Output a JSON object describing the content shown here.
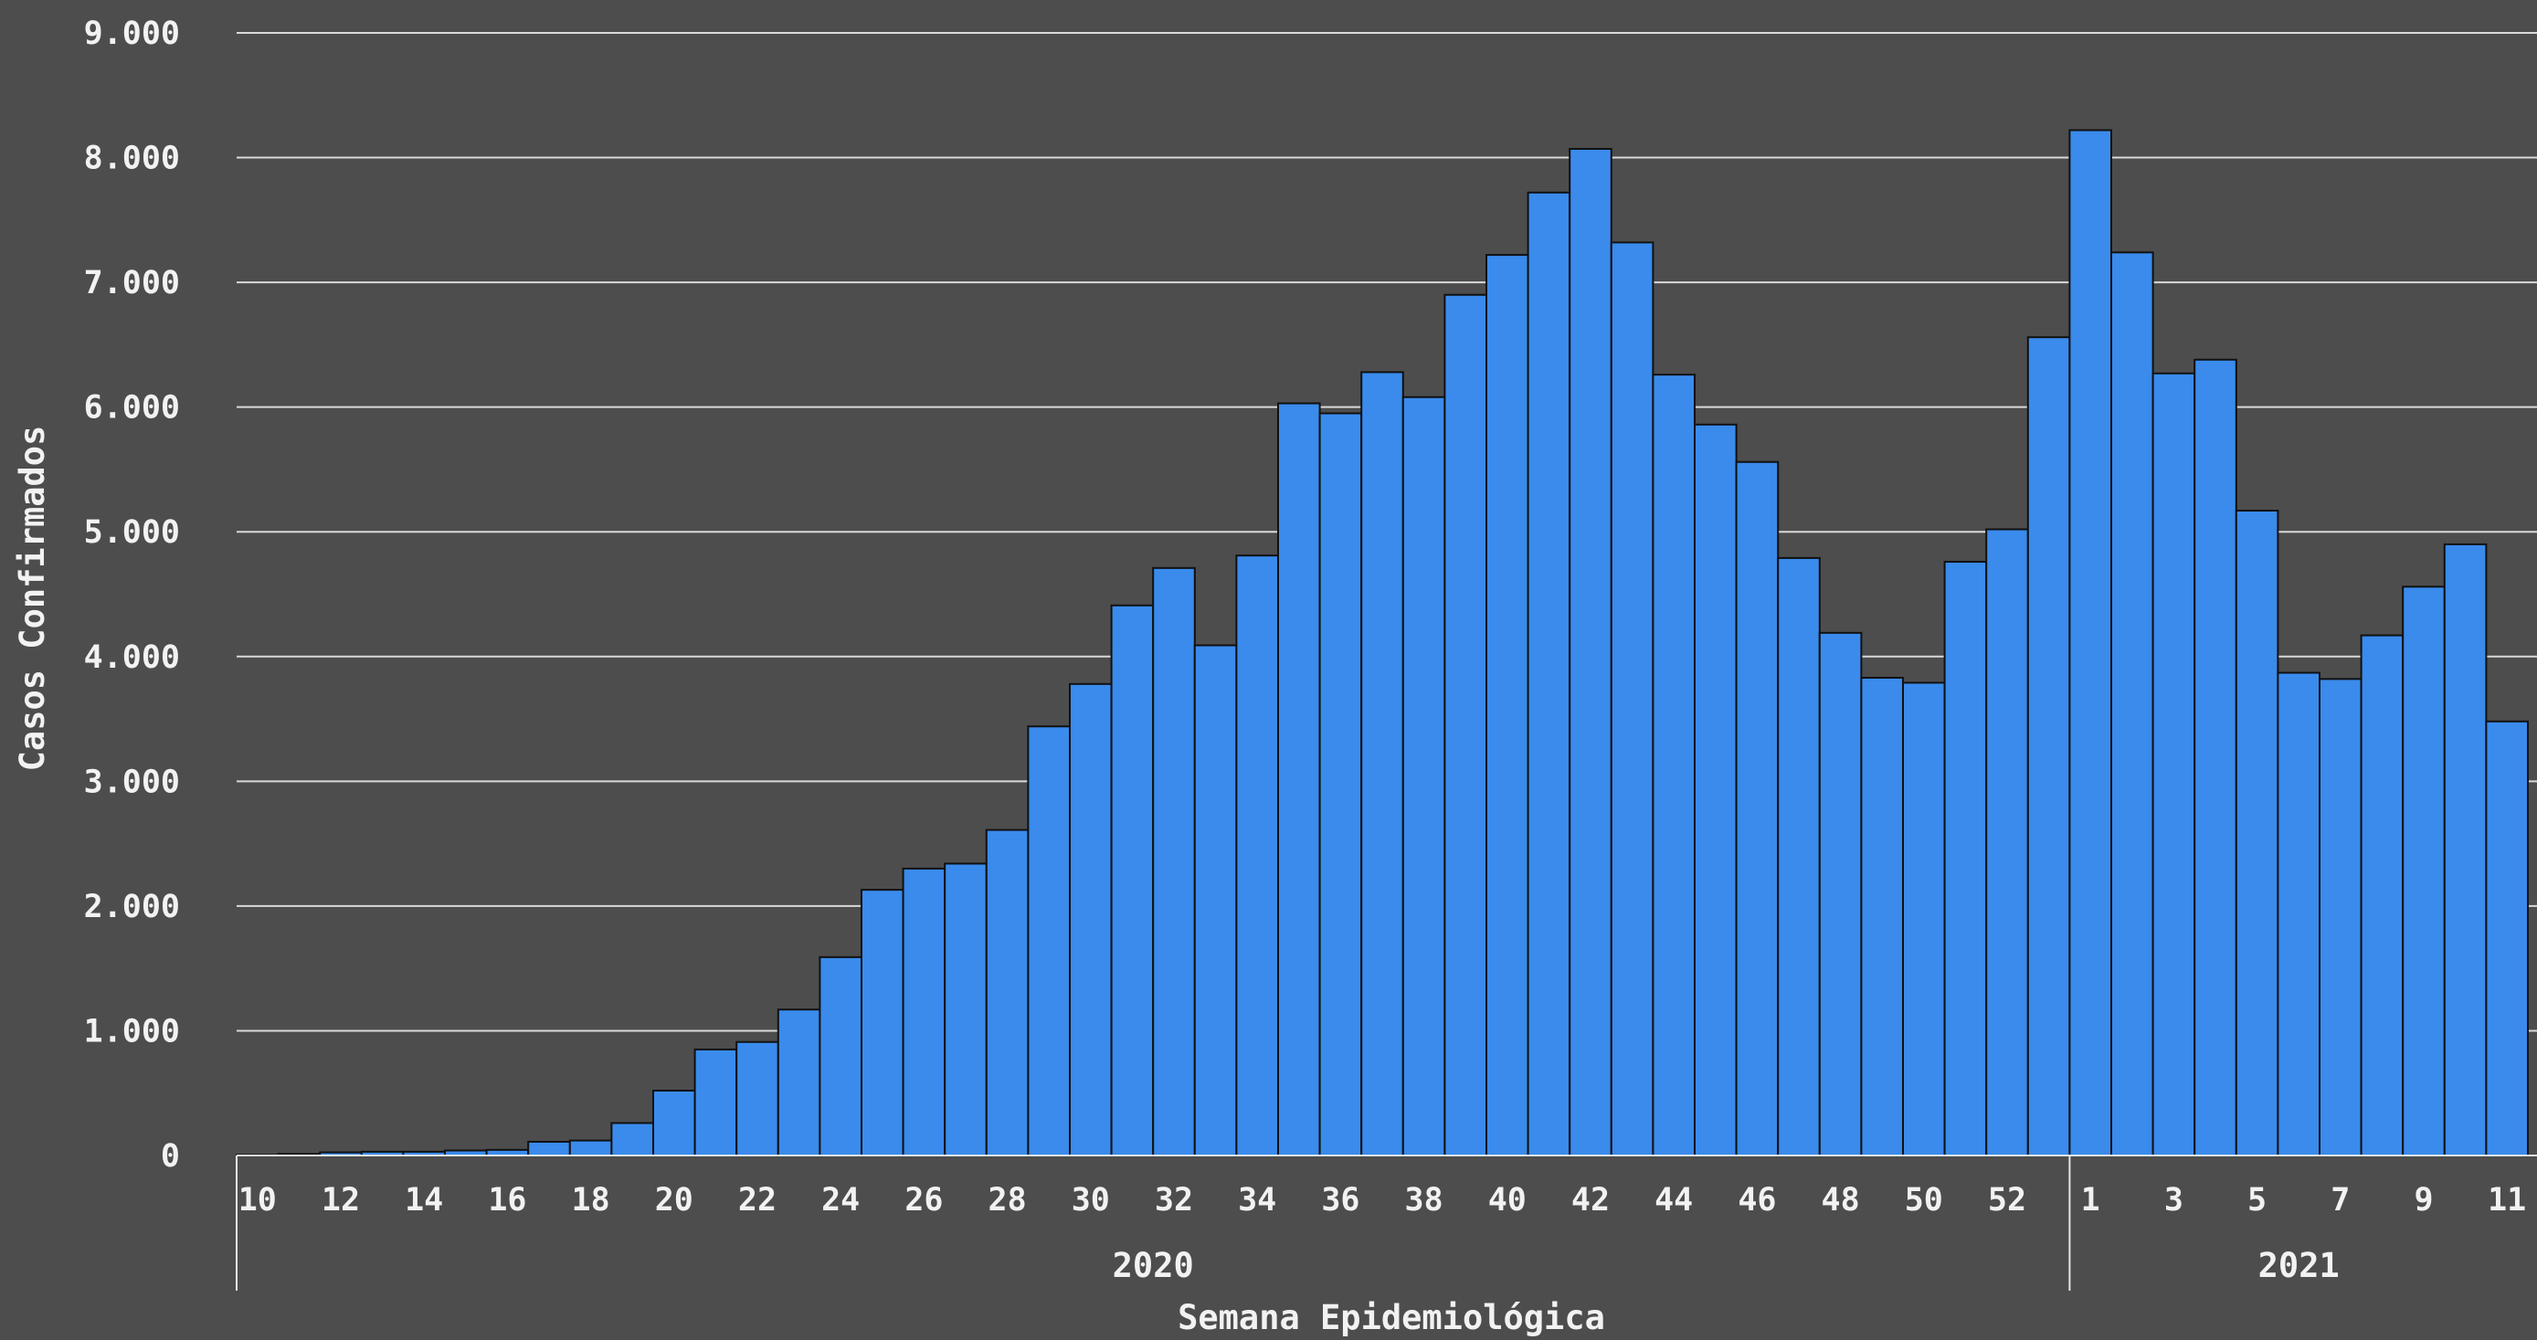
{
  "chart_data": {
    "type": "bar",
    "title": "",
    "xlabel": "Semana Epidemiológica",
    "ylabel": "Casos Confirmados",
    "ylim": [
      0,
      9000
    ],
    "yticks": [
      0,
      1000,
      2000,
      3000,
      4000,
      5000,
      6000,
      7000,
      8000,
      9000
    ],
    "ytick_labels": [
      "0",
      "1.000",
      "2.000",
      "3.000",
      "4.000",
      "5.000",
      "6.000",
      "7.000",
      "8.000",
      "9.000"
    ],
    "grid": true,
    "legend": "none",
    "bar_color": "#3a8bec",
    "bar_edge_color": "#111111",
    "background": "#4d4d4d",
    "grid_color": "#d9d9d9",
    "text_color": "#f2f2f2",
    "groups": [
      {
        "label": "2020",
        "start": 0,
        "count": 44
      },
      {
        "label": "2021",
        "start": 44,
        "count": 11
      }
    ],
    "categories": [
      "10",
      "11",
      "12",
      "13",
      "14",
      "15",
      "16",
      "17",
      "18",
      "19",
      "20",
      "21",
      "22",
      "23",
      "24",
      "25",
      "26",
      "27",
      "28",
      "29",
      "30",
      "31",
      "32",
      "33",
      "34",
      "35",
      "36",
      "37",
      "38",
      "39",
      "40",
      "41",
      "42",
      "43",
      "44",
      "45",
      "46",
      "47",
      "48",
      "49",
      "50",
      "51",
      "52",
      "53",
      "1",
      "2",
      "3",
      "4",
      "5",
      "6",
      "7",
      "8",
      "9",
      "10",
      "11"
    ],
    "tick_labels": [
      "10",
      "",
      "12",
      "",
      "14",
      "",
      "16",
      "",
      "18",
      "",
      "20",
      "",
      "22",
      "",
      "24",
      "",
      "26",
      "",
      "28",
      "",
      "30",
      "",
      "32",
      "",
      "34",
      "",
      "36",
      "",
      "38",
      "",
      "40",
      "",
      "42",
      "",
      "44",
      "",
      "46",
      "",
      "48",
      "",
      "50",
      "",
      "52",
      "",
      "1",
      "",
      "3",
      "",
      "5",
      "",
      "7",
      "",
      "9",
      "",
      "11"
    ],
    "values": [
      5,
      12,
      25,
      30,
      30,
      40,
      45,
      110,
      120,
      260,
      520,
      850,
      910,
      1170,
      1590,
      2130,
      2300,
      2340,
      2610,
      3440,
      3780,
      4410,
      4710,
      4090,
      4810,
      6030,
      5950,
      6280,
      6080,
      6900,
      7220,
      7720,
      8070,
      7320,
      6260,
      5860,
      5560,
      4790,
      4190,
      3830,
      3790,
      4760,
      5020,
      6560,
      8220,
      7240,
      6270,
      6380,
      5170,
      3870,
      3820,
      4170,
      4560,
      4900,
      3480
    ]
  }
}
